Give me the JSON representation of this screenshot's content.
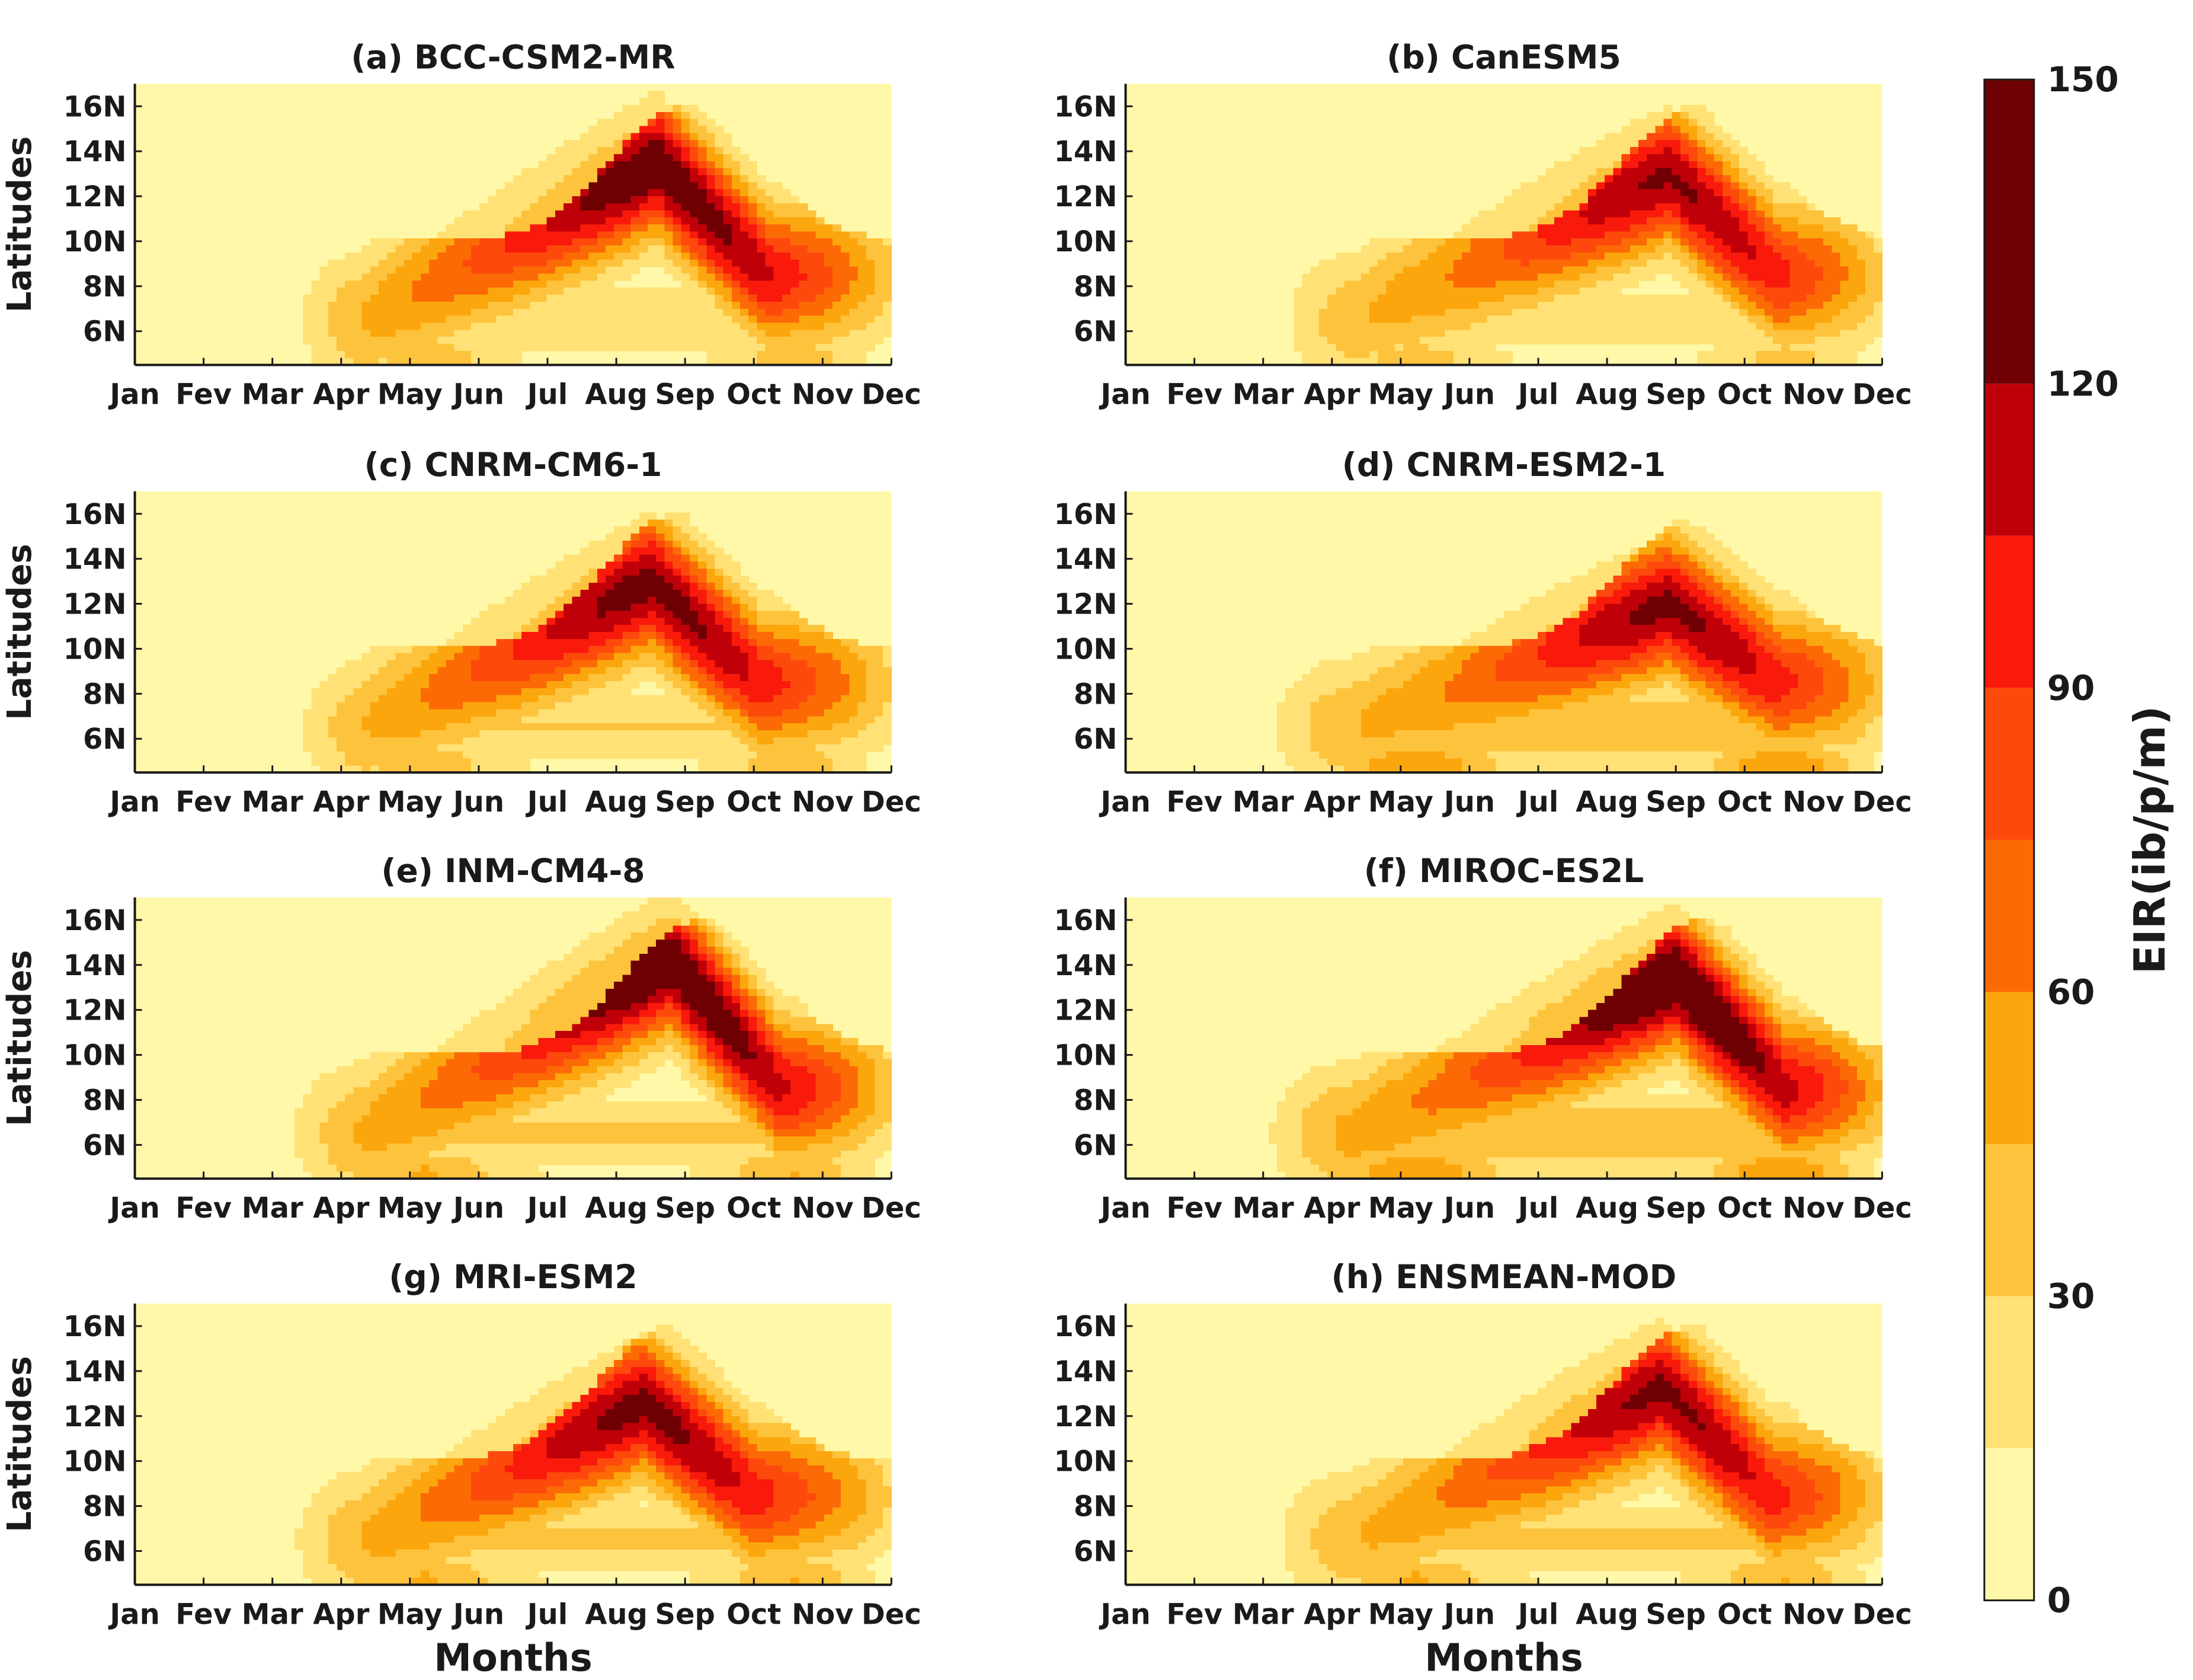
{
  "chart_data": {
    "type": "heatmap",
    "colorbar": {
      "label": "EIR(ib/p/m)",
      "ticks": [
        0,
        30,
        60,
        90,
        120,
        150
      ],
      "levels": [
        0,
        15,
        30,
        45,
        60,
        75,
        90,
        105,
        120,
        150
      ],
      "colors": [
        "#fff8a8",
        "#ffe175",
        "#fec33c",
        "#fca60d",
        "#fc6a06",
        "#fd4a0c",
        "#f91a0b",
        "#c00009",
        "#6e0004"
      ]
    },
    "x_ticks": [
      "Jan",
      "Fev",
      "Mar",
      "Apr",
      "May",
      "Jun",
      "Jul",
      "Aug",
      "Sep",
      "Oct",
      "Nov",
      "Dec"
    ],
    "y_ticks": [
      "6N",
      "8N",
      "10N",
      "12N",
      "14N",
      "16N"
    ],
    "ylim": [
      4.5,
      17
    ],
    "ylabel": "Latitudes",
    "xlabel": "Months",
    "panels": [
      {
        "title": "(a) BCC-CSM2-MR",
        "peak_month": 7.6,
        "peak_lat": 13.5,
        "peak_value": 135,
        "start_month": 2.7,
        "end_month": 11.0,
        "low_lat_value": 52
      },
      {
        "title": "(b) CanESM5",
        "peak_month": 7.9,
        "peak_lat": 13.0,
        "peak_value": 122,
        "start_month": 2.6,
        "end_month": 11.0,
        "low_lat_value": 48
      },
      {
        "title": "(c) CNRM-CM6-1",
        "peak_month": 7.5,
        "peak_lat": 13.0,
        "peak_value": 128,
        "start_month": 2.7,
        "end_month": 11.0,
        "low_lat_value": 55
      },
      {
        "title": "(d) CNRM-ESM2-1",
        "peak_month": 7.9,
        "peak_lat": 12.0,
        "peak_value": 124,
        "start_month": 2.4,
        "end_month": 11.1,
        "low_lat_value": 80
      },
      {
        "title": "(e) INM-CM4-8",
        "peak_month": 7.8,
        "peak_lat": 14.2,
        "peak_value": 138,
        "start_month": 2.6,
        "end_month": 11.0,
        "low_lat_value": 62
      },
      {
        "title": "(f) MIROC-ES2L",
        "peak_month": 8.0,
        "peak_lat": 13.5,
        "peak_value": 142,
        "start_month": 2.4,
        "end_month": 11.1,
        "low_lat_value": 80
      },
      {
        "title": "(g) MRI-ESM2",
        "peak_month": 7.4,
        "peak_lat": 12.6,
        "peak_value": 126,
        "start_month": 2.6,
        "end_month": 11.0,
        "low_lat_value": 62
      },
      {
        "title": "(h) ENSMEAN-MOD",
        "peak_month": 7.8,
        "peak_lat": 13.3,
        "peak_value": 124,
        "start_month": 2.5,
        "end_month": 11.0,
        "low_lat_value": 62
      }
    ]
  }
}
